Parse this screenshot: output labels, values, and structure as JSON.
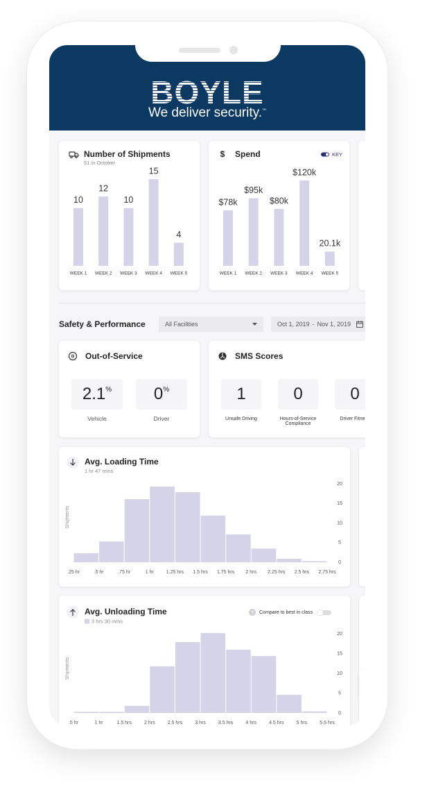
{
  "header": {
    "brand": "BOYLE",
    "tagline": "We deliver security.",
    "trademark": "™"
  },
  "chart_data": [
    {
      "type": "bar",
      "title": "Number of Shipments",
      "subtitle": "51 in October",
      "categories": [
        "WEEK 1",
        "WEEK 2",
        "WEEK 3",
        "WEEK 4",
        "WEEK 5"
      ],
      "values": [
        10,
        12,
        10,
        15,
        4
      ],
      "color": "#d5d3e7"
    },
    {
      "type": "bar",
      "title": "Spend",
      "icon": "$",
      "key_label": "KEY",
      "categories": [
        "WEEK 1",
        "WEEK 2",
        "WEEK 3",
        "WEEK 4",
        "WEEK 5"
      ],
      "values": [
        78000,
        95000,
        80000,
        120000,
        20100
      ],
      "value_labels": [
        "$78k",
        "$95k",
        "$80k",
        "$120k",
        "20.1k"
      ],
      "color": "#d5d3e7"
    },
    {
      "type": "histogram",
      "title": "Avg. Loading Time",
      "subtitle": "1 hr 47 mins",
      "ylabel": "Shipments",
      "bins": [
        0.25,
        0.5,
        0.75,
        1,
        1.25,
        1.5,
        1.75,
        2,
        2.25,
        2.5,
        2.75
      ],
      "values": [
        2.3,
        5.3,
        16.1,
        19.3,
        17.9,
        11.9,
        7.1,
        3.5,
        0.9,
        0.3
      ],
      "xlim": [
        0.25,
        2.75
      ],
      "xticks": [
        {
          "value": 0.25,
          "label": ".25 hr"
        },
        {
          "value": 0.5,
          "label": ".5 hr"
        },
        {
          "value": 0.75,
          "label": ".75 hr"
        },
        {
          "value": 1,
          "label": "1 hr"
        },
        {
          "value": 1.25,
          "label": "1.25 hrs"
        },
        {
          "value": 1.5,
          "label": "1.5 hrs"
        },
        {
          "value": 1.75,
          "label": "1.75 hrs"
        },
        {
          "value": 2,
          "label": "2 hrs"
        },
        {
          "value": 2.25,
          "label": "2.25 hrs"
        },
        {
          "value": 2.5,
          "label": "2.5 hrs"
        },
        {
          "value": 2.75,
          "label": "2.75 hrs"
        }
      ],
      "ylim": [
        0,
        20
      ],
      "yticks": [
        0,
        5,
        10,
        15,
        20
      ],
      "color": "#d5d3e7"
    },
    {
      "type": "histogram",
      "title": "Avg. Unloading Time",
      "legend": "3 hrs 30 mins",
      "compare_label": "Compare to best in class",
      "help_icon": "?",
      "ylabel": "Shipments",
      "bins": [
        0.5,
        1,
        1.5,
        2,
        2.5,
        3,
        3.5,
        4,
        4.5,
        5,
        5.5
      ],
      "values": [
        0.3,
        0.3,
        1.8,
        11.8,
        17.9,
        20.2,
        16,
        14.4,
        4.6,
        0.4
      ],
      "xlim": [
        0.5,
        5.5
      ],
      "xticks": [
        {
          "value": 0.5,
          "label": ".5 hr"
        },
        {
          "value": 1,
          "label": "1 hr"
        },
        {
          "value": 1.5,
          "label": "1.5 hrs"
        },
        {
          "value": 2,
          "label": "2 hrs"
        },
        {
          "value": 2.5,
          "label": "2.5 hrs"
        },
        {
          "value": 3,
          "label": "3 hrs"
        },
        {
          "value": 3.5,
          "label": "3.5 hrs"
        },
        {
          "value": 4,
          "label": "4 hrs"
        },
        {
          "value": 4.5,
          "label": "4.5 hrs"
        },
        {
          "value": 5,
          "label": "5 hrs"
        },
        {
          "value": 5.5,
          "label": "5.5 hrs"
        }
      ],
      "ylim": [
        0,
        20
      ],
      "yticks": [
        0,
        5,
        10,
        15,
        20
      ],
      "color": "#d5d3e7"
    }
  ],
  "safety": {
    "title": "Safety & Performance",
    "facility_filter": "All Facilities",
    "date_from": "Oct 1, 2019",
    "date_separator": "-",
    "date_to": "Nov 1, 2019"
  },
  "out_of_service": {
    "title": "Out-of-Service",
    "metrics": [
      {
        "value": 2.1,
        "unit": "%",
        "label": "Vehicle"
      },
      {
        "value": 0,
        "unit": "%",
        "label": "Driver"
      }
    ]
  },
  "sms_scores": {
    "title": "SMS Scores",
    "metrics": [
      {
        "value": 1,
        "label": "Unsafe Driving"
      },
      {
        "value": 0,
        "label": "Hours-of-Service Compliance"
      },
      {
        "value": 0,
        "label": "Driver Fitness"
      }
    ]
  }
}
